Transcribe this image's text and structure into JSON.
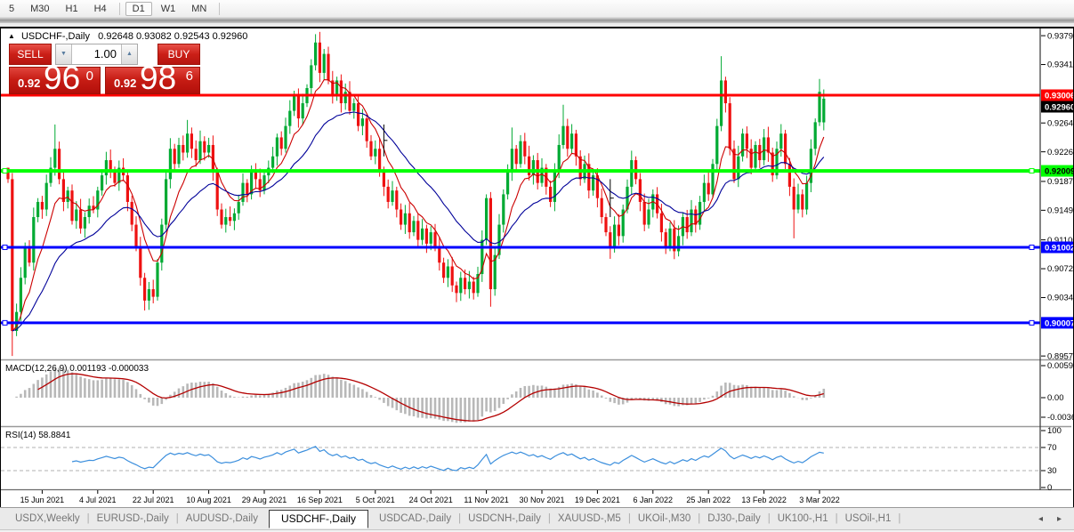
{
  "toolbar": {
    "timeframes": [
      "5",
      "M30",
      "H1",
      "H4",
      "D1",
      "W1",
      "MN"
    ],
    "active": "D1"
  },
  "header": {
    "collapse_arrow": "▲",
    "symbol_title": "USDCHF-,Daily",
    "ohlc": "0.92648 0.93082 0.92543 0.92960"
  },
  "trade_panel": {
    "sell_label": "SELL",
    "buy_label": "BUY",
    "volume_value": "1.00",
    "spinner_down_icon": "▼",
    "spinner_up_icon": "▲",
    "sell_price": {
      "prefix": "0.92",
      "big": "96",
      "sup": "0"
    },
    "buy_price": {
      "prefix": "0.92",
      "big": "98",
      "sup": "6"
    }
  },
  "macd_panel": {
    "label": "MACD(12,26,9) 0.001193 -0.000033",
    "axis_labels": [
      "0.005963",
      "0.00",
      "-0.003664"
    ]
  },
  "rsi_panel": {
    "label": "RSI(14) 58.8841",
    "axis_labels": [
      "100",
      "70",
      "30",
      "0"
    ]
  },
  "tabs": {
    "items": [
      "USDX,Weekly",
      "EURUSD-,Daily",
      "AUDUSD-,Daily",
      "USDCHF-,Daily",
      "USDCAD-,Daily",
      "USDCNH-,Daily",
      "XAUUSD-,M5",
      "UKOil-,M30",
      "DJ30-,Daily",
      "UK100-,H1",
      "USOil-,H1"
    ],
    "active_index": 3,
    "scroll_left_icon": "◂",
    "scroll_right_icon": "▸"
  },
  "chart_data": {
    "type": "candlestick",
    "symbol": "USDCHF-,Daily",
    "ohlc_current": {
      "open": 0.92648,
      "high": 0.93082,
      "low": 0.92543,
      "close": 0.9296
    },
    "y_axis_ticks": [
      0.9379,
      0.9341,
      0.9264,
      0.9226,
      0.9187,
      0.9149,
      0.911,
      0.9072,
      0.9034,
      0.8957
    ],
    "date_ticks": [
      {
        "label": "15 Jun 2021",
        "bar": 8
      },
      {
        "label": "4 Jul 2021",
        "bar": 21
      },
      {
        "label": "22 Jul 2021",
        "bar": 34
      },
      {
        "label": "10 Aug 2021",
        "bar": 47
      },
      {
        "label": "29 Aug 2021",
        "bar": 60
      },
      {
        "label": "16 Sep 2021",
        "bar": 73
      },
      {
        "label": "5 Oct 2021",
        "bar": 86
      },
      {
        "label": "24 Oct 2021",
        "bar": 99
      },
      {
        "label": "11 Nov 2021",
        "bar": 112
      },
      {
        "label": "30 Nov 2021",
        "bar": 125
      },
      {
        "label": "19 Dec 2021",
        "bar": 138
      },
      {
        "label": "6 Jan 2022",
        "bar": 151
      },
      {
        "label": "25 Jan 2022",
        "bar": 164
      },
      {
        "label": "13 Feb 2022",
        "bar": 177
      },
      {
        "label": "3 Mar 2022",
        "bar": 190
      }
    ],
    "horizontal_lines": [
      {
        "price": 0.93006,
        "color": "#ff0000",
        "width": 3,
        "badge_fg": "#ffffff",
        "handles": false
      },
      {
        "price": 0.92009,
        "color": "#00ff00",
        "width": 4,
        "badge_fg": "#000000",
        "handles": true
      },
      {
        "price": 0.91002,
        "color": "#0000ff",
        "width": 3,
        "badge_fg": "#ffffff",
        "handles": true
      },
      {
        "price": 0.90007,
        "color": "#0000ff",
        "width": 3,
        "badge_fg": "#ffffff",
        "handles": true
      }
    ],
    "current_price_badge": {
      "value": 0.9296,
      "bg": "#000000",
      "fg": "#ffffff"
    },
    "moving_averages": [
      {
        "period": 8,
        "color": "#cc0000"
      },
      {
        "period": 24,
        "color": "#000099"
      }
    ],
    "indicators": {
      "macd": {
        "params": [
          12,
          26,
          9
        ],
        "value": 0.001193,
        "signal": -3.3e-05,
        "axis_max": 0.005963,
        "axis_min": -0.003664,
        "histogram_color": "#b8b8b8",
        "signal_color": "#b40000"
      },
      "rsi": {
        "period": 14,
        "value": 58.8841,
        "levels": [
          70,
          30
        ],
        "line_color": "#3c8fdd"
      }
    },
    "candle_colors": {
      "up": "#00aa33",
      "down": "#ee1111"
    },
    "closes": [
      0.919,
      0.899,
      0.9015,
      0.906,
      0.91,
      0.908,
      0.914,
      0.916,
      0.915,
      0.9185,
      0.9205,
      0.923,
      0.919,
      0.916,
      0.9175,
      0.9135,
      0.915,
      0.9125,
      0.914,
      0.9155,
      0.915,
      0.9175,
      0.9195,
      0.9215,
      0.92,
      0.9185,
      0.9205,
      0.9195,
      0.916,
      0.913,
      0.91,
      0.906,
      0.903,
      0.9045,
      0.9035,
      0.908,
      0.913,
      0.919,
      0.923,
      0.921,
      0.9235,
      0.9225,
      0.925,
      0.923,
      0.9215,
      0.924,
      0.9225,
      0.9235,
      0.92,
      0.915,
      0.913,
      0.914,
      0.9135,
      0.9145,
      0.916,
      0.9185,
      0.917,
      0.92,
      0.919,
      0.9175,
      0.9195,
      0.9205,
      0.922,
      0.9245,
      0.923,
      0.926,
      0.928,
      0.93,
      0.927,
      0.929,
      0.931,
      0.934,
      0.937,
      0.933,
      0.9355,
      0.932,
      0.93,
      0.932,
      0.929,
      0.9305,
      0.928,
      0.929,
      0.926,
      0.927,
      0.924,
      0.922,
      0.923,
      0.92,
      0.918,
      0.916,
      0.9175,
      0.915,
      0.913,
      0.9145,
      0.912,
      0.9135,
      0.911,
      0.9125,
      0.9105,
      0.912,
      0.91,
      0.908,
      0.906,
      0.9075,
      0.905,
      0.904,
      0.906,
      0.9045,
      0.9055,
      0.904,
      0.9065,
      0.911,
      0.9165,
      0.9045,
      0.909,
      0.913,
      0.917,
      0.92,
      0.923,
      0.921,
      0.924,
      0.922,
      0.9195,
      0.9215,
      0.9185,
      0.9205,
      0.918,
      0.916,
      0.92,
      0.9235,
      0.926,
      0.923,
      0.925,
      0.922,
      0.919,
      0.921,
      0.9175,
      0.9195,
      0.9165,
      0.914,
      0.912,
      0.91,
      0.913,
      0.9115,
      0.915,
      0.918,
      0.9215,
      0.919,
      0.916,
      0.913,
      0.915,
      0.917,
      0.9145,
      0.912,
      0.91,
      0.9125,
      0.9095,
      0.9115,
      0.914,
      0.912,
      0.915,
      0.913,
      0.916,
      0.9185,
      0.917,
      0.921,
      0.926,
      0.932,
      0.929,
      0.923,
      0.919,
      0.922,
      0.925,
      0.923,
      0.9205,
      0.9235,
      0.9215,
      0.9245,
      0.9225,
      0.9195,
      0.923,
      0.925,
      0.921,
      0.918,
      0.915,
      0.917,
      0.915,
      0.9185,
      0.923,
      0.9265,
      0.9305,
      0.9296
    ],
    "overrides": {
      "0": {
        "open": 0.9205
      },
      "1": {
        "low": 0.8957
      },
      "11": {
        "high": 0.9262
      },
      "32": {
        "low": 0.9017
      },
      "42": {
        "high": 0.9268
      },
      "72": {
        "high": 0.9381
      },
      "105": {
        "low": 0.9028
      },
      "113": {
        "low": 0.9022
      },
      "118": {
        "high": 0.9258
      },
      "130": {
        "high": 0.9288
      },
      "141": {
        "low": 0.9085
      },
      "167": {
        "high": 0.9352
      },
      "184": {
        "low": 0.9112
      },
      "190": {
        "high": 0.9322
      },
      "191": {
        "open": 0.92648,
        "high": 0.93082,
        "low": 0.92543,
        "close": 0.9296
      }
    },
    "vertical_marks": [
      {
        "bar": 88,
        "price_top": 0.9262,
        "price_bottom": 0.922
      },
      {
        "bar": 141,
        "price_top": 0.919,
        "price_bottom": 0.914
      }
    ]
  }
}
